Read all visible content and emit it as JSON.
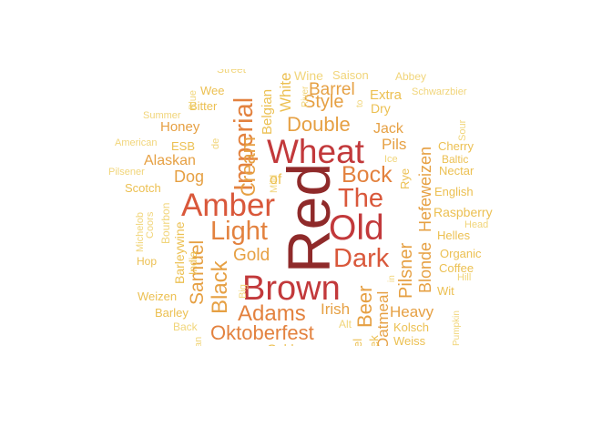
{
  "colors": {
    "c1": "#8f2a2a",
    "c2": "#c2393b",
    "c3": "#d9583b",
    "c4": "#e3823f",
    "c5": "#e6a043",
    "c6": "#ecc052",
    "c7": "#f1d57a"
  },
  "words": [
    {
      "text": "Red",
      "color": "c1"
    },
    {
      "text": "Wheat",
      "color": "c2"
    },
    {
      "text": "Old",
      "color": "c2"
    },
    {
      "text": "Brown",
      "color": "c2"
    },
    {
      "text": "Amber",
      "color": "c3"
    },
    {
      "text": "The",
      "color": "c3"
    },
    {
      "text": "Dark",
      "color": "c3"
    },
    {
      "text": "Light",
      "color": "c4"
    },
    {
      "text": "Imperial",
      "color": "c4"
    },
    {
      "text": "Bock",
      "color": "c4"
    },
    {
      "text": "Adams",
      "color": "c4"
    },
    {
      "text": "Oktoberfest",
      "color": "c4"
    },
    {
      "text": "Black",
      "color": "c5"
    },
    {
      "text": "Cream",
      "color": "c5"
    },
    {
      "text": "Samuel",
      "color": "c5"
    },
    {
      "text": "Double",
      "color": "c5"
    },
    {
      "text": "Pilsner",
      "color": "c5"
    },
    {
      "text": "Beer",
      "color": "c5"
    },
    {
      "text": "Style",
      "color": "c5"
    },
    {
      "text": "Barrel",
      "color": "c5"
    },
    {
      "text": "Gold",
      "color": "c5"
    },
    {
      "text": "Hefeweizen",
      "color": "c5"
    },
    {
      "text": "Blonde",
      "color": "c5"
    },
    {
      "text": "Oatmeal",
      "color": "c5"
    },
    {
      "text": "Irish",
      "color": "c5"
    },
    {
      "text": "Heavy",
      "color": "c5"
    },
    {
      "text": "Alaskan",
      "color": "c5"
    },
    {
      "text": "Dog",
      "color": "c5"
    },
    {
      "text": "Pils",
      "color": "c5"
    },
    {
      "text": "Jack",
      "color": "c5"
    },
    {
      "text": "Honey",
      "color": "c5"
    },
    {
      "text": "Belgian",
      "color": "c6"
    },
    {
      "text": "White",
      "color": "c6"
    },
    {
      "text": "Extra",
      "color": "c6"
    },
    {
      "text": "Dry",
      "color": "c6"
    },
    {
      "text": "Raspberry",
      "color": "c6"
    },
    {
      "text": "English",
      "color": "c6"
    },
    {
      "text": "Organic",
      "color": "c6"
    },
    {
      "text": "Scotch",
      "color": "c6"
    },
    {
      "text": "Rye",
      "color": "c6"
    },
    {
      "text": "Bitter",
      "color": "c6"
    },
    {
      "text": "Wee",
      "color": "c6"
    },
    {
      "text": "ESB",
      "color": "c6"
    },
    {
      "text": "Weizen",
      "color": "c6"
    },
    {
      "text": "Barley",
      "color": "c6"
    },
    {
      "text": "Kolsch",
      "color": "c6"
    },
    {
      "text": "Weiss",
      "color": "c6"
    },
    {
      "text": "Coffee",
      "color": "c6"
    },
    {
      "text": "Wit",
      "color": "c6"
    },
    {
      "text": "Nectar",
      "color": "c6"
    },
    {
      "text": "Cherry",
      "color": "c6"
    },
    {
      "text": "Baltic",
      "color": "c6"
    },
    {
      "text": "Helles",
      "color": "c6"
    },
    {
      "text": "Saison",
      "color": "c7"
    },
    {
      "text": "Wine",
      "color": "c7"
    },
    {
      "text": "Street",
      "color": "c7"
    },
    {
      "text": "Abbey",
      "color": "c7"
    },
    {
      "text": "Schwarzbier",
      "color": "c7"
    },
    {
      "text": "Blue",
      "color": "c7"
    },
    {
      "text": "Summer",
      "color": "c7"
    },
    {
      "text": "American",
      "color": "c7"
    },
    {
      "text": "Pilsener",
      "color": "c7"
    },
    {
      "text": "Michelob",
      "color": "c7"
    },
    {
      "text": "Coors",
      "color": "c7"
    },
    {
      "text": "Bourbon",
      "color": "c7"
    },
    {
      "text": "Barleywine",
      "color": "c6"
    },
    {
      "text": "India",
      "color": "c6"
    },
    {
      "text": "Hop",
      "color": "c6"
    },
    {
      "text": "Big",
      "color": "c7"
    },
    {
      "text": "Mild",
      "color": "c7"
    },
    {
      "text": "of",
      "color": "c6"
    },
    {
      "text": "Sour",
      "color": "c7"
    },
    {
      "text": "Head",
      "color": "c7"
    },
    {
      "text": "Hill",
      "color": "c7"
    },
    {
      "text": "Pumpkin",
      "color": "c7"
    },
    {
      "text": "Ice",
      "color": "c7"
    },
    {
      "text": "Alt",
      "color": "c7"
    },
    {
      "text": "Back",
      "color": "c7"
    },
    {
      "text": "River",
      "color": "c7"
    },
    {
      "text": "de",
      "color": "c7"
    },
    {
      "text": "to",
      "color": "c7"
    },
    {
      "text": "in",
      "color": "c7"
    },
    {
      "text": "an",
      "color": "c7"
    },
    {
      "text": "el",
      "color": "c6"
    },
    {
      "text": "ek",
      "color": "c6"
    },
    {
      "text": "Golden",
      "color": "c6"
    }
  ]
}
